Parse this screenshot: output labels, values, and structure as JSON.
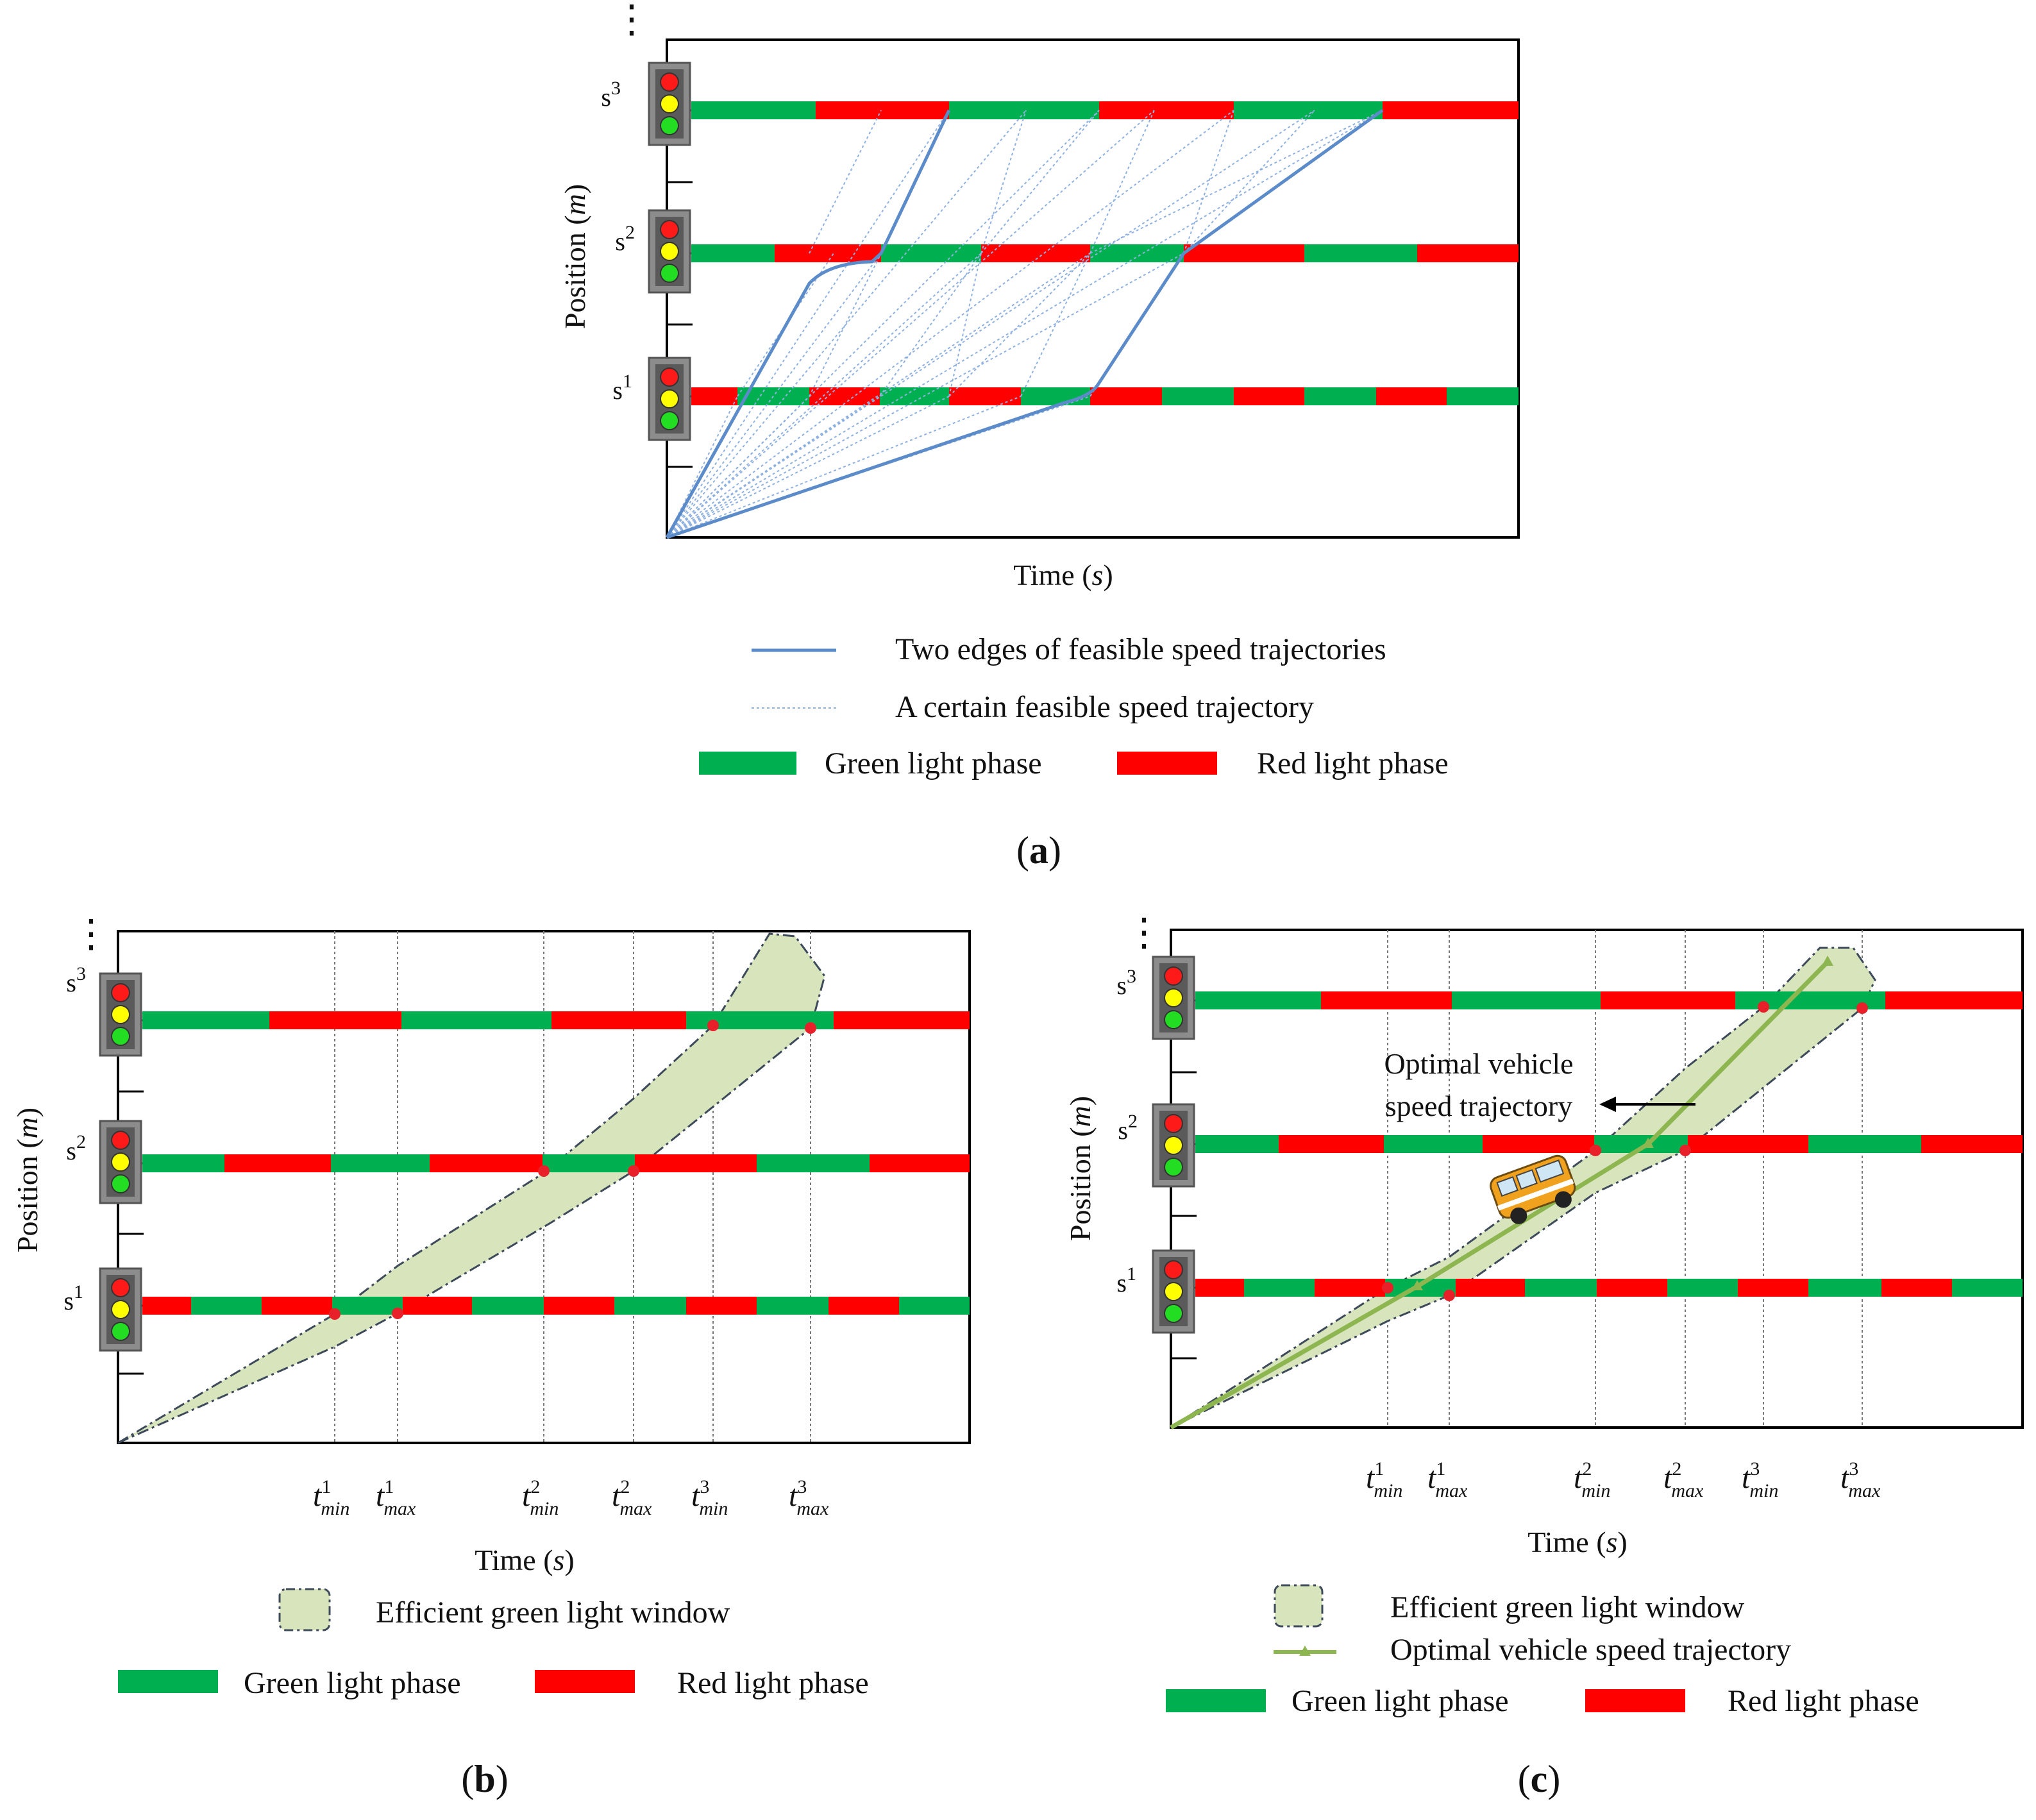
{
  "legend_a": {
    "edges": "Two edges of feasible speed trajectories",
    "feasible": "A certain feasible speed trajectory",
    "green": "Green light phase",
    "red": "Red light phase"
  },
  "legend_b": {
    "window": "Efficient green light window",
    "green": "Green light phase",
    "red": "Red light phase"
  },
  "legend_c": {
    "window": "Efficient green light window",
    "optimal": "Optimal vehicle speed trajectory",
    "green": "Green light phase",
    "red": "Red light phase"
  },
  "axes": {
    "x_title_prefix": "Time (",
    "x_title_var": "s",
    "x_title_suffix": ")",
    "y_title_prefix": "Position (",
    "y_title_var": "m",
    "y_title_suffix": ")"
  },
  "stations": [
    {
      "base": "s",
      "sup": "1"
    },
    {
      "base": "s",
      "sup": "2"
    },
    {
      "base": "s",
      "sup": "3"
    }
  ],
  "ellipsis": "⋮",
  "ticks": [
    {
      "t": "t",
      "sup": "1",
      "sub": "min"
    },
    {
      "t": "t",
      "sup": "1",
      "sub": "max"
    },
    {
      "t": "t",
      "sup": "2",
      "sub": "min"
    },
    {
      "t": "t",
      "sup": "2",
      "sub": "max"
    },
    {
      "t": "t",
      "sup": "3",
      "sub": "min"
    },
    {
      "t": "t",
      "sup": "3",
      "sub": "max"
    }
  ],
  "annotation_c": {
    "line1": "Optimal vehicle",
    "line2": "speed trajectory"
  },
  "panel_labels": {
    "a": "a",
    "b": "b",
    "c": "c"
  },
  "colors": {
    "green_phase": "#00b050",
    "red_phase": "#ff0000",
    "trajectory_edge": "#5b8bc9",
    "trajectory_feasible": "#8fb1e0",
    "window_fill": "#d8e4bc",
    "optimal_line": "#8db550",
    "crossing_point": "#e8202a"
  },
  "icons": {
    "traffic_light": "traffic-light-icon",
    "vehicle": "van-icon"
  }
}
